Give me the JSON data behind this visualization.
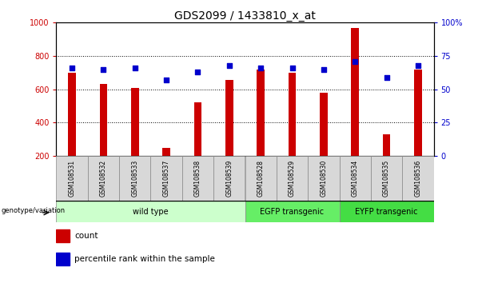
{
  "title": "GDS2099 / 1433810_x_at",
  "samples": [
    "GSM108531",
    "GSM108532",
    "GSM108533",
    "GSM108537",
    "GSM108538",
    "GSM108539",
    "GSM108528",
    "GSM108529",
    "GSM108530",
    "GSM108534",
    "GSM108535",
    "GSM108536"
  ],
  "counts": [
    700,
    630,
    605,
    245,
    520,
    655,
    720,
    700,
    578,
    968,
    330,
    720
  ],
  "percentile_ranks": [
    66,
    65,
    66,
    57,
    63,
    68,
    66,
    66,
    65,
    71,
    59,
    68
  ],
  "group_labels": [
    "wild type",
    "EGFP transgenic",
    "EYFP transgenic"
  ],
  "group_colors": [
    "#ccffcc",
    "#66ee66",
    "#44dd44"
  ],
  "group_ranges": [
    [
      0,
      6
    ],
    [
      6,
      9
    ],
    [
      9,
      12
    ]
  ],
  "ylim_left": [
    200,
    1000
  ],
  "ylim_right": [
    0,
    100
  ],
  "yticks_left": [
    200,
    400,
    600,
    800,
    1000
  ],
  "yticks_right": [
    0,
    25,
    50,
    75,
    100
  ],
  "ytick_labels_right": [
    "0",
    "25",
    "50",
    "75",
    "100%"
  ],
  "bar_color": "#cc0000",
  "dot_color": "#0000cc",
  "legend_count_label": "count",
  "legend_percentile_label": "percentile rank within the sample",
  "genotype_label": "genotype/variation",
  "title_fontsize": 10,
  "tick_fontsize": 7,
  "sample_fontsize": 5.5,
  "group_fontsize": 7,
  "legend_fontsize": 7.5,
  "bar_width": 0.25
}
